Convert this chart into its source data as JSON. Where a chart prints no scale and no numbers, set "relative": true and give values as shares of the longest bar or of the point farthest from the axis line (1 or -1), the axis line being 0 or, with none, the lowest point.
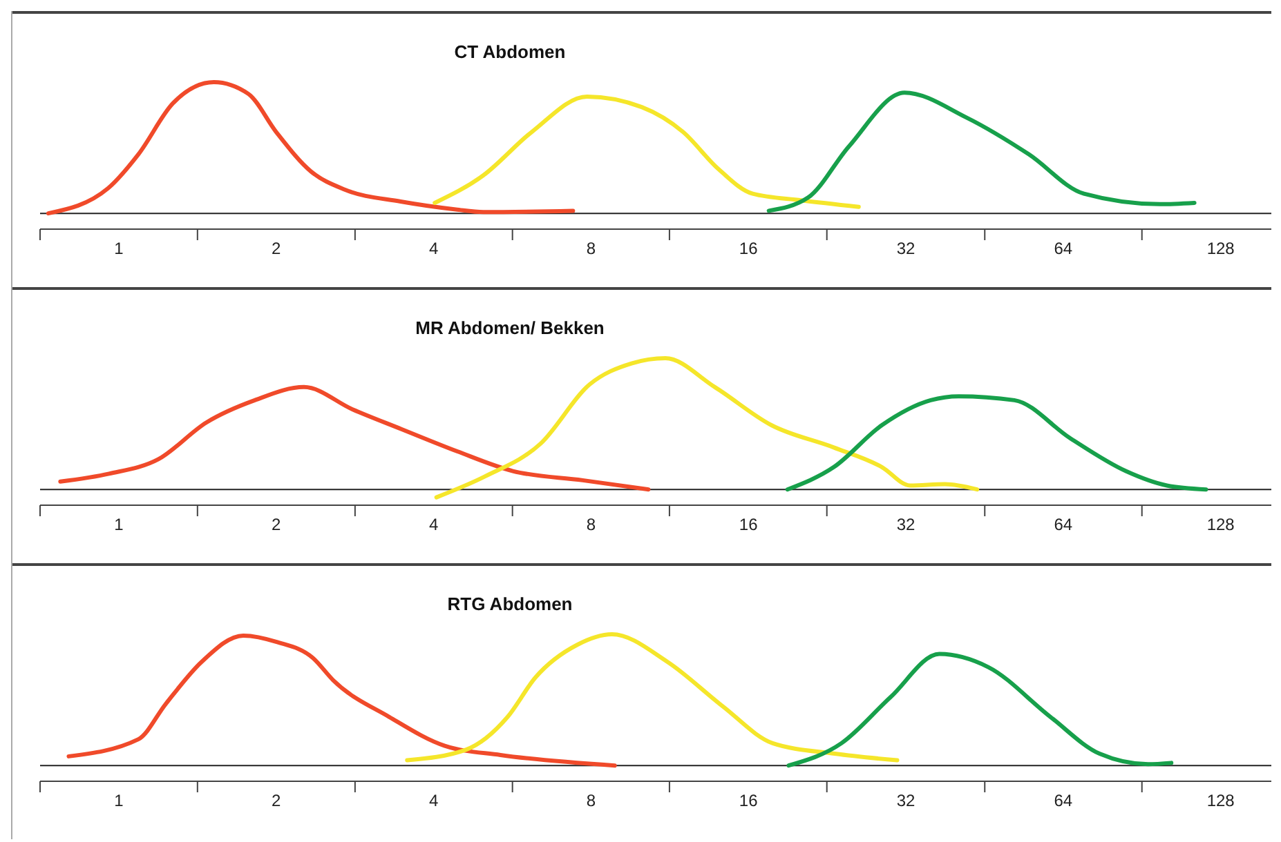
{
  "chart_data": [
    {
      "type": "line",
      "title": "CT Abdomen",
      "relative": true,
      "log": "x",
      "marker": "none",
      "line_style": "solid",
      "xlim": [
        0.707,
        160
      ],
      "xticks": [
        {
          "value": 0.707,
          "label": null
        },
        1,
        {
          "value": 1.414,
          "label": null
        },
        2,
        {
          "value": 2.83,
          "label": null
        },
        4,
        {
          "value": 5.66,
          "label": null
        },
        8,
        {
          "value": 11.3,
          "label": null
        },
        16,
        {
          "value": 22.6,
          "label": null
        },
        32,
        {
          "value": 45.3,
          "label": null
        },
        64,
        {
          "value": 90.5,
          "label": null
        },
        128
      ],
      "series": [
        {
          "color": "#f04a2a",
          "x": [
            0.733,
            0.953,
            1.09,
            1.27,
            1.52,
            1.77,
            2.0,
            2.33,
            2.71,
            3.46,
            4.41,
            4.98,
            7.39
          ],
          "values": [
            0,
            0.19,
            0.45,
            0.84,
            1.0,
            0.91,
            0.62,
            0.32,
            0.18,
            0.09,
            0.03,
            0.01,
            0.02
          ]
        },
        {
          "color": "#f5e62a",
          "x": [
            4.02,
            4.98,
            6.16,
            7.86,
            10.0,
            12.0,
            14.0,
            16.3,
            20.2,
            26.0
          ],
          "values": [
            0.08,
            0.29,
            0.62,
            0.89,
            0.81,
            0.62,
            0.34,
            0.15,
            0.1,
            0.05
          ]
        },
        {
          "color": "#17a04b",
          "x": [
            17.5,
            20.8,
            24.9,
            31.8,
            41.8,
            55.0,
            70.1,
            98.0,
            114
          ],
          "values": [
            0.02,
            0.12,
            0.51,
            0.92,
            0.73,
            0.45,
            0.15,
            0.07,
            0.08
          ]
        }
      ]
    },
    {
      "type": "line",
      "title": "MR Abdomen/ Bekken",
      "relative": true,
      "log": "x",
      "marker": "none",
      "line_style": "solid",
      "xlim": [
        0.707,
        160
      ],
      "xticks": [
        {
          "value": 0.707,
          "label": null
        },
        1,
        {
          "value": 1.414,
          "label": null
        },
        2,
        {
          "value": 2.83,
          "label": null
        },
        4,
        {
          "value": 5.66,
          "label": null
        },
        8,
        {
          "value": 11.3,
          "label": null
        },
        16,
        {
          "value": 22.6,
          "label": null
        },
        32,
        {
          "value": 45.3,
          "label": null
        },
        64,
        {
          "value": 90.5,
          "label": null
        },
        128
      ],
      "series": [
        {
          "color": "#f04a2a",
          "x": [
            0.773,
            0.958,
            1.19,
            1.47,
            1.82,
            2.26,
            2.8,
            3.47,
            4.44,
            5.67,
            7.71,
            10.3
          ],
          "values": [
            0.06,
            0.12,
            0.23,
            0.51,
            0.68,
            0.78,
            0.61,
            0.46,
            0.29,
            0.14,
            0.07,
            0
          ]
        },
        {
          "color": "#f5e62a",
          "x": [
            4.05,
            5.02,
            6.41,
            7.95,
            9.56,
            11.1,
            13.8,
            17.7,
            23.3,
            28.8,
            32.6,
            38.0,
            43.8
          ],
          "values": [
            -0.06,
            0.1,
            0.35,
            0.8,
            0.96,
            1.0,
            0.78,
            0.49,
            0.32,
            0.17,
            0.03,
            0.04,
            0
          ]
        },
        {
          "color": "#17a04b",
          "x": [
            19.0,
            23.3,
            28.8,
            35.7,
            40.4,
            51.6,
            66.0,
            84.3,
            101,
            120
          ],
          "values": [
            0,
            0.17,
            0.49,
            0.68,
            0.71,
            0.68,
            0.39,
            0.14,
            0.03,
            0
          ]
        }
      ]
    },
    {
      "type": "line",
      "title": "RTG Abdomen",
      "relative": true,
      "log": "x",
      "marker": "none",
      "line_style": "solid",
      "xlim": [
        0.707,
        160
      ],
      "xticks": [
        {
          "value": 0.707,
          "label": null
        },
        1,
        {
          "value": 1.414,
          "label": null
        },
        2,
        {
          "value": 2.83,
          "label": null
        },
        4,
        {
          "value": 5.66,
          "label": null
        },
        8,
        {
          "value": 11.3,
          "label": null
        },
        16,
        {
          "value": 22.6,
          "label": null
        },
        32,
        {
          "value": 45.3,
          "label": null
        },
        64,
        {
          "value": 90.5,
          "label": null
        },
        128
      ],
      "series": [
        {
          "color": "#f04a2a",
          "x": [
            0.802,
            1.09,
            1.23,
            1.44,
            1.73,
            2.01,
            2.35,
            2.57,
            3.29,
            4.2,
            5.37,
            8.88
          ],
          "values": [
            0.07,
            0.2,
            0.47,
            0.79,
            0.99,
            0.94,
            0.82,
            0.65,
            0.37,
            0.15,
            0.08,
            0
          ]
        },
        {
          "color": "#f5e62a",
          "x": [
            3.56,
            4.61,
            5.54,
            6.26,
            7.53,
            8.77,
            11.2,
            14.3,
            17.8,
            23.4,
            30.8
          ],
          "values": [
            0.04,
            0.12,
            0.37,
            0.67,
            0.92,
            1.0,
            0.79,
            0.45,
            0.17,
            0.09,
            0.04
          ]
        },
        {
          "color": "#17a04b",
          "x": [
            19.1,
            24.1,
            29.9,
            37.1,
            46.0,
            60.5,
            75.1,
            93.0,
            103
          ],
          "values": [
            0,
            0.17,
            0.52,
            0.85,
            0.75,
            0.37,
            0.09,
            0.01,
            0.02
          ]
        }
      ]
    }
  ]
}
